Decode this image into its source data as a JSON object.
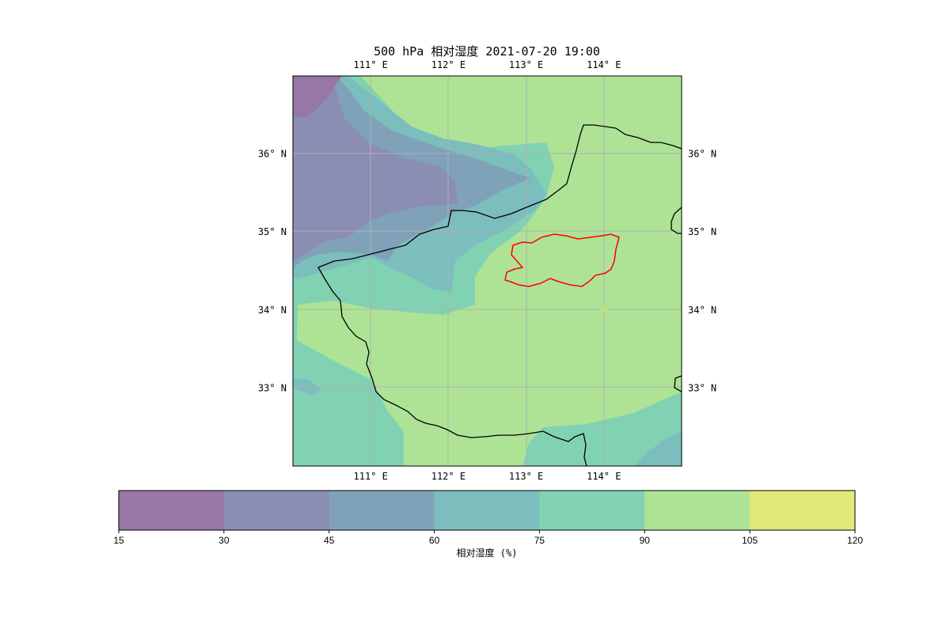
{
  "title": "500 hPa 相对湿度 2021-07-20 19:00",
  "map": {
    "lon_ticks": [
      {
        "value": 111,
        "label": "111° E"
      },
      {
        "value": 112,
        "label": "112° E"
      },
      {
        "value": 113,
        "label": "113° E"
      },
      {
        "value": 114,
        "label": "114° E"
      }
    ],
    "lat_ticks": [
      {
        "value": 36,
        "label": "36° N"
      },
      {
        "value": 35,
        "label": "35° N"
      },
      {
        "value": 34,
        "label": "34° N"
      },
      {
        "value": 33,
        "label": "33° N"
      }
    ],
    "extent": {
      "lon_min": 110.0,
      "lon_max": 115.0,
      "lat_min": 32.0,
      "lat_max": 37.0
    },
    "gridlines": true,
    "province_border_color": "#000000",
    "target_region_border_color": "#ff0000"
  },
  "colorbar": {
    "label": "相对湿度 (%)",
    "levels": [
      15,
      30,
      45,
      60,
      75,
      90,
      105,
      120
    ],
    "colors": [
      "#9677a6",
      "#8b8db3",
      "#7fa2b9",
      "#7cbdbd",
      "#80d2b2",
      "#aee396",
      "#e0ea76"
    ]
  }
}
